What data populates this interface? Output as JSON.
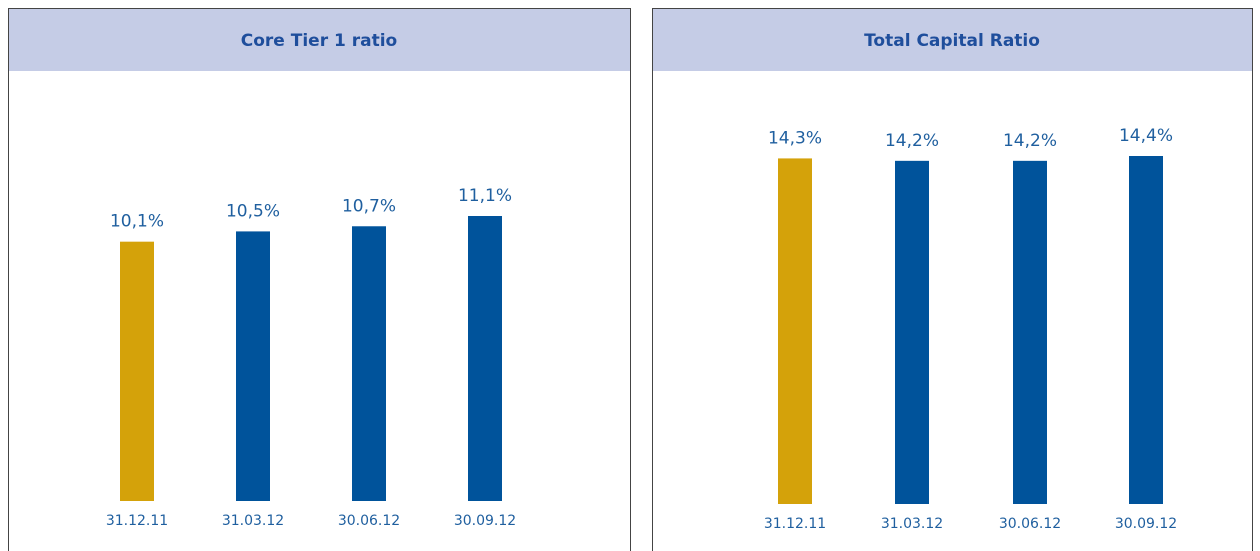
{
  "chart_data": [
    {
      "type": "bar",
      "title": "Core Tier 1 ratio",
      "categories": [
        "31.12.11",
        "31.03.12",
        "30.06.12",
        "30.09.12"
      ],
      "values": [
        10.1,
        10.5,
        10.7,
        11.1
      ],
      "value_labels": [
        "10,1%",
        "10,5%",
        "10,7%",
        "11,1%"
      ],
      "colors": [
        "#d4a20a",
        "#00539b",
        "#00539b",
        "#00539b"
      ]
    },
    {
      "type": "bar",
      "title": "Total Capital Ratio",
      "categories": [
        "31.12.11",
        "31.03.12",
        "30.06.12",
        "30.09.12"
      ],
      "values": [
        14.3,
        14.2,
        14.2,
        14.4
      ],
      "value_labels": [
        "14,3%",
        "14,2%",
        "14,2%",
        "14,4%"
      ],
      "colors": [
        "#d4a20a",
        "#00539b",
        "#00539b",
        "#00539b"
      ]
    }
  ]
}
